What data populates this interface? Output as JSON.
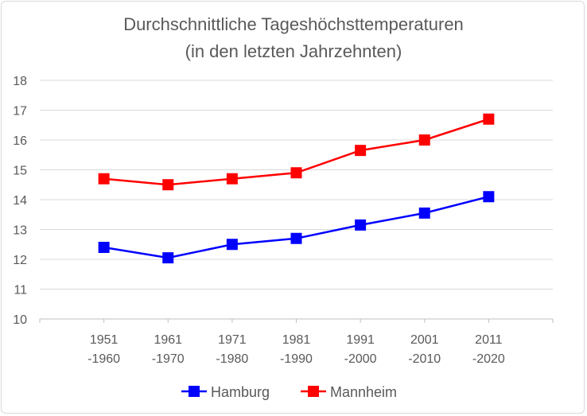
{
  "chart_data": {
    "type": "line",
    "title": "Durchschnittliche Tageshöchsttemperaturen",
    "subtitle": "(in den letzten Jahrzehnten)",
    "categories": [
      [
        "1951",
        "-1960"
      ],
      [
        "1961",
        "-1970"
      ],
      [
        "1971",
        "-1980"
      ],
      [
        "1981",
        "-1990"
      ],
      [
        "1991",
        "-2000"
      ],
      [
        "2001",
        "-2010"
      ],
      [
        "2011",
        "-2020"
      ]
    ],
    "ylim": [
      10,
      18
    ],
    "yticks": [
      "10",
      "11",
      "12",
      "13",
      "14",
      "15",
      "16",
      "17",
      "18"
    ],
    "grid": true,
    "legend_position": "bottom",
    "series": [
      {
        "name": "Hamburg",
        "color": "#0000ff",
        "values": [
          12.4,
          12.05,
          12.5,
          12.7,
          13.15,
          13.55,
          14.1
        ]
      },
      {
        "name": "Mannheim",
        "color": "#ff0000",
        "values": [
          14.7,
          14.5,
          14.7,
          14.9,
          15.65,
          16.0,
          16.7
        ]
      }
    ]
  }
}
